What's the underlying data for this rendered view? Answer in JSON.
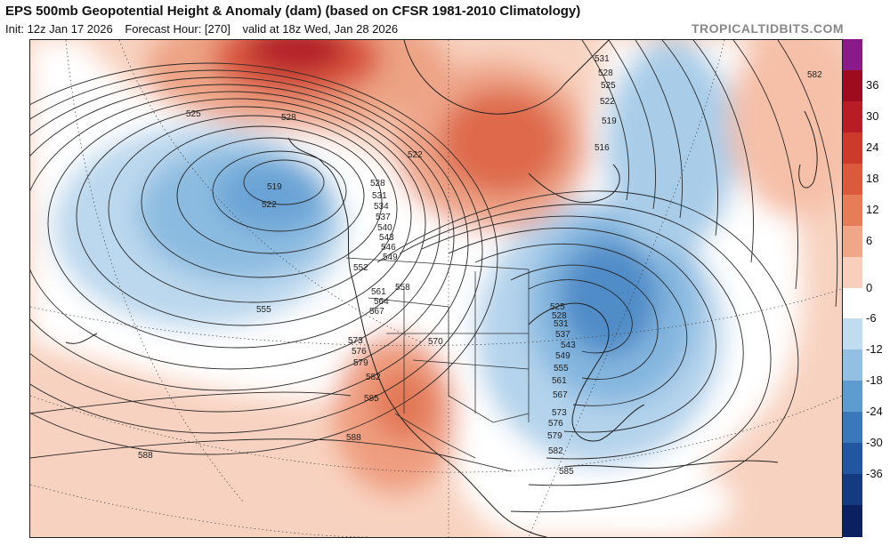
{
  "header": {
    "title": "EPS 500mb Geopotential Height & Anomaly (dam) (based on CFSR 1981-2010 Climatology)",
    "init": "Init: 12z Jan 17 2026",
    "forecast_hour": "Forecast Hour: [270]",
    "valid": "valid at 18z Wed, Jan 28 2026",
    "brand": "TROPICALTIDBITS.COM"
  },
  "colorbar": {
    "labels": [
      "36",
      "30",
      "24",
      "18",
      "12",
      "6",
      "0",
      "-6",
      "-12",
      "-18",
      "-24",
      "-30",
      "-36"
    ],
    "colors": [
      "#8a1a8a",
      "#9e0a1e",
      "#b81c24",
      "#cc3a2c",
      "#dc5a3c",
      "#e67c58",
      "#f2a688",
      "#f8cfbd",
      "#ffffff",
      "#c2dcef",
      "#93c0e2",
      "#5e9cd0",
      "#3a78bb",
      "#2356a0",
      "#163a80",
      "#0a2060"
    ]
  },
  "contour_labels": [
    {
      "id": "c519w",
      "text": "519"
    },
    {
      "id": "c522w",
      "text": "522"
    },
    {
      "id": "c525nw",
      "text": "525"
    },
    {
      "id": "c528ak",
      "text": "528"
    },
    {
      "id": "c555p",
      "text": "555"
    },
    {
      "id": "c522c",
      "text": "522"
    },
    {
      "id": "c528b",
      "text": "528"
    },
    {
      "id": "c531b",
      "text": "531"
    },
    {
      "id": "c534b",
      "text": "534"
    },
    {
      "id": "c537b",
      "text": "537"
    },
    {
      "id": "c540b",
      "text": "540"
    },
    {
      "id": "c543b",
      "text": "543"
    },
    {
      "id": "c546b",
      "text": "546"
    },
    {
      "id": "c549b",
      "text": "549"
    },
    {
      "id": "c552b",
      "text": "552"
    },
    {
      "id": "c558b",
      "text": "558"
    },
    {
      "id": "c561b",
      "text": "561"
    },
    {
      "id": "c564b",
      "text": "564"
    },
    {
      "id": "c567b",
      "text": "567"
    },
    {
      "id": "c570b",
      "text": "570"
    },
    {
      "id": "c573b",
      "text": "573"
    },
    {
      "id": "c576b",
      "text": "576"
    },
    {
      "id": "c579b",
      "text": "579"
    },
    {
      "id": "c582b",
      "text": "582"
    },
    {
      "id": "c585b",
      "text": "585"
    },
    {
      "id": "c588b",
      "text": "588"
    },
    {
      "id": "c588w",
      "text": "588"
    },
    {
      "id": "c531n",
      "text": "531"
    },
    {
      "id": "c528n",
      "text": "528"
    },
    {
      "id": "c525n",
      "text": "525"
    },
    {
      "id": "c522n",
      "text": "522"
    },
    {
      "id": "c519n",
      "text": "519"
    },
    {
      "id": "c516n",
      "text": "516"
    },
    {
      "id": "c525e",
      "text": "525"
    },
    {
      "id": "c528e",
      "text": "528"
    },
    {
      "id": "c531e",
      "text": "531"
    },
    {
      "id": "c537e",
      "text": "537"
    },
    {
      "id": "c543e",
      "text": "543"
    },
    {
      "id": "c549e",
      "text": "549"
    },
    {
      "id": "c555e",
      "text": "555"
    },
    {
      "id": "c561e",
      "text": "561"
    },
    {
      "id": "c567e",
      "text": "567"
    },
    {
      "id": "c573e",
      "text": "573"
    },
    {
      "id": "c576e",
      "text": "576"
    },
    {
      "id": "c579e",
      "text": "579"
    },
    {
      "id": "c582e",
      "text": "582"
    },
    {
      "id": "c585e",
      "text": "585"
    },
    {
      "id": "c582ne",
      "text": "582"
    }
  ]
}
